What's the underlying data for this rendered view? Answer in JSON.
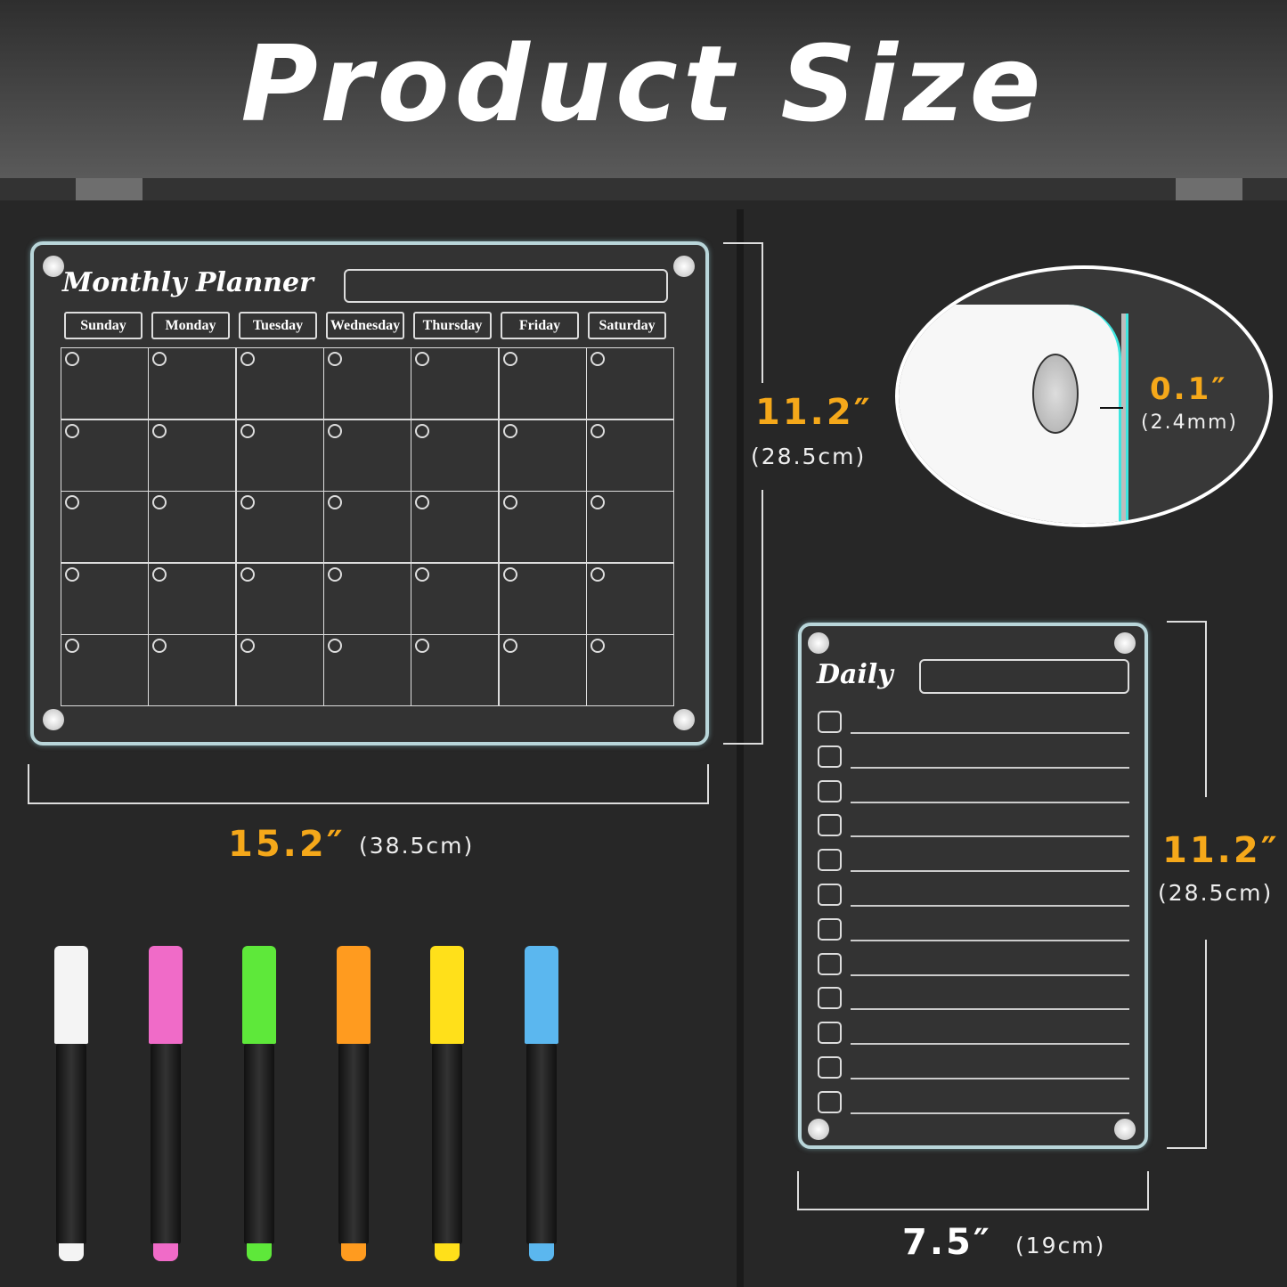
{
  "title": "Product Size",
  "monthly": {
    "title": "Monthly Planner",
    "days": [
      "Sunday",
      "Monday",
      "Tuesday",
      "Wednesday",
      "Thursday",
      "Friday",
      "Saturday"
    ],
    "rows": 5,
    "height": "11.2″",
    "height_metric": "(28.5cm)",
    "width": "15.2″",
    "width_metric": "(38.5cm)"
  },
  "thickness": {
    "value": "0.1″",
    "metric": "(2.4mm)"
  },
  "daily": {
    "title": "Daily",
    "rows": 12,
    "height": "11.2″",
    "height_metric": "(28.5cm)",
    "width": "7.5″",
    "width_metric": "(19cm)"
  },
  "markers": [
    {
      "color": "#f4f4f4"
    },
    {
      "color": "#f06bc8"
    },
    {
      "color": "#5ee83a"
    },
    {
      "color": "#ff9b1f"
    },
    {
      "color": "#ffe01a"
    },
    {
      "color": "#5bb7ef"
    }
  ],
  "colors": {
    "accent": "#f5a81a",
    "edge": "#3ee6e0"
  }
}
